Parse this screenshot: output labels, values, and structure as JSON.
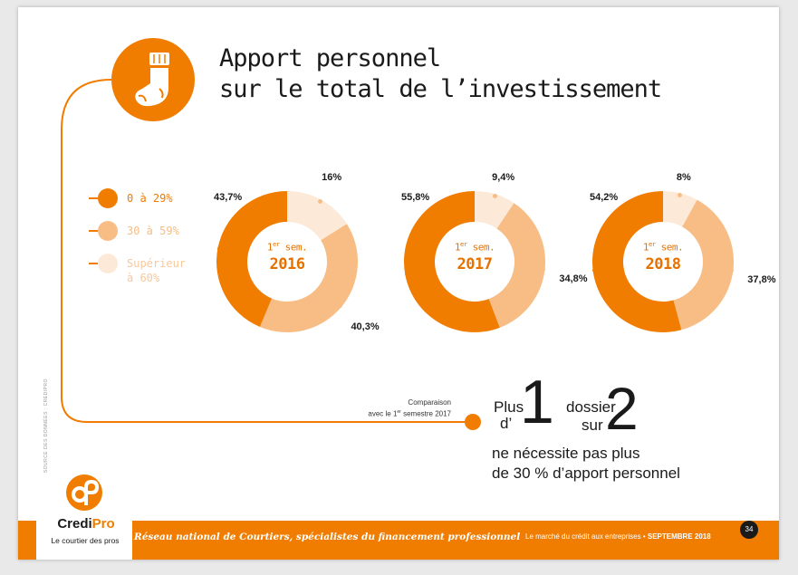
{
  "title": {
    "line1": "Apport personnel",
    "line2": "sur le total de l’investissement"
  },
  "legend": [
    {
      "label_lines": [
        "0 à 29%"
      ],
      "color": "#f07d00"
    },
    {
      "label_lines": [
        "30 à 59%"
      ],
      "color": "#f7bd85"
    },
    {
      "label_lines": [
        "Supérieur",
        "à 60%"
      ],
      "color": "#fde9d8"
    }
  ],
  "colors": {
    "accent": "#f07d00",
    "mid": "#f7bd85",
    "light": "#fde9d8",
    "dark": "#1a1a1a"
  },
  "chart_data": [
    {
      "type": "pie",
      "center_label": "1er sem.",
      "center_sup": "er",
      "center_prefix": "1",
      "center_suffix": " sem.",
      "year": "2016",
      "categories": [
        "0 à 29%",
        "30 à 59%",
        "Supérieur à 60%"
      ],
      "values": [
        43.7,
        40.3,
        16
      ],
      "labels": [
        "43,7%",
        "40,3%",
        "16%"
      ]
    },
    {
      "type": "pie",
      "center_label": "1er sem.",
      "center_sup": "er",
      "center_prefix": "1",
      "center_suffix": " sem.",
      "year": "2017",
      "categories": [
        "0 à 29%",
        "30 à 59%",
        "Supérieur à 60%"
      ],
      "values": [
        55.8,
        34.8,
        9.4
      ],
      "labels": [
        "55,8%",
        "34,8%",
        "9,4%"
      ]
    },
    {
      "type": "pie",
      "center_label": "1er sem.",
      "center_sup": "er",
      "center_prefix": "1",
      "center_suffix": " sem.",
      "year": "2018",
      "categories": [
        "0 à 29%",
        "30 à 59%",
        "Supérieur à 60%"
      ],
      "values": [
        54.2,
        37.8,
        8
      ],
      "labels": [
        "54,2%",
        "37,8%",
        "8%"
      ]
    }
  ],
  "comparison": {
    "line1": "Comparaison",
    "line2_prefix": "avec le 1",
    "line2_sup": "er",
    "line2_suffix": " semestre 2017"
  },
  "highlight": {
    "plus": "Plus",
    "d": "d’",
    "one": "1",
    "dossier": "dossier",
    "sur": "sur",
    "two": "2",
    "line1": "ne nécessite pas plus",
    "line2": "de 30 % d’apport personnel"
  },
  "source": "SOURCE DES DONNÉES : CREDIPRO",
  "footer": {
    "slogan": "Réseau national de Courtiers, spécialistes du financement professionnel",
    "right_text": "Le marché du crédit aux entreprises",
    "right_sep": " • ",
    "right_bold": "SEPTEMBRE 2018",
    "page_number": "34"
  },
  "logo": {
    "name_a": "Credi",
    "name_b": "Pro",
    "tagline": "Le courtier des pros",
    "icon": "credipro-logo-icon"
  },
  "icons": {
    "sock": "sock-icon"
  }
}
